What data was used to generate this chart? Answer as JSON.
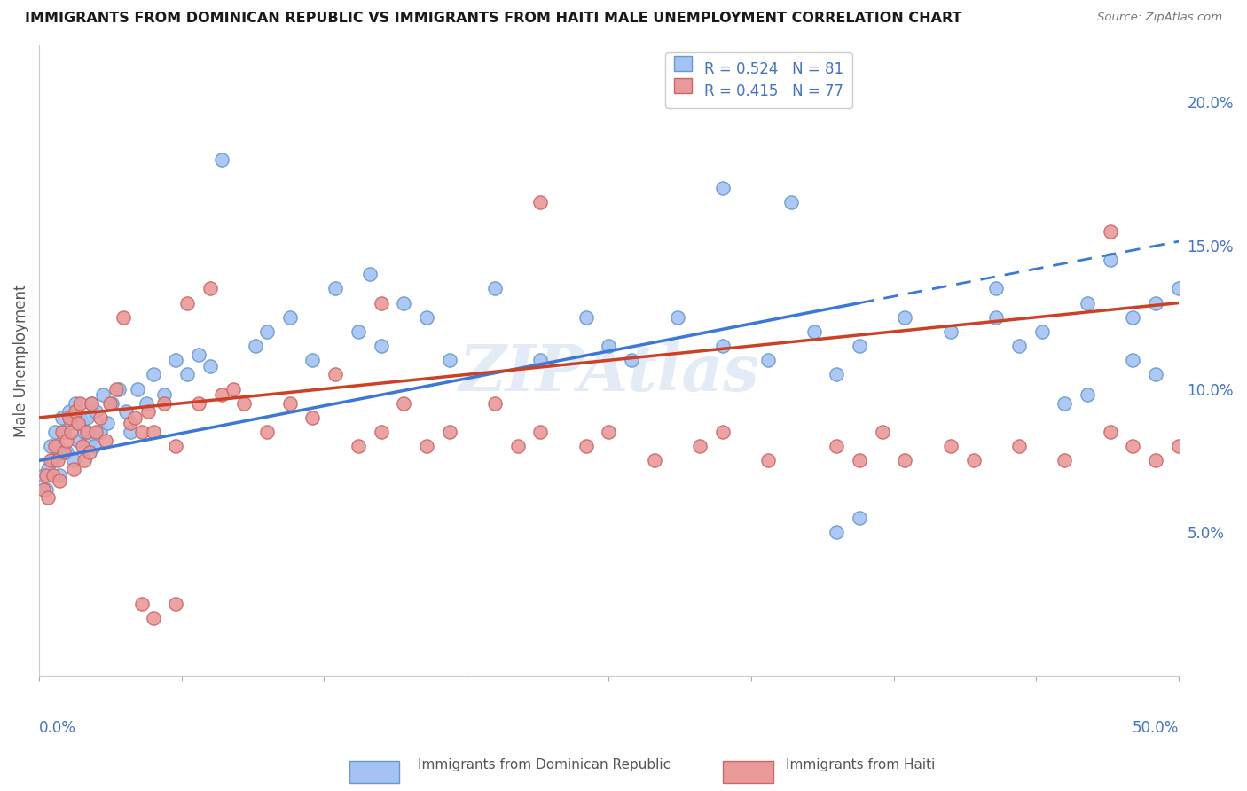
{
  "title": "IMMIGRANTS FROM DOMINICAN REPUBLIC VS IMMIGRANTS FROM HAITI MALE UNEMPLOYMENT CORRELATION CHART",
  "source": "Source: ZipAtlas.com",
  "ylabel": "Male Unemployment",
  "legend_blue_r": "R = 0.524",
  "legend_blue_n": "N = 81",
  "legend_pink_r": "R = 0.415",
  "legend_pink_n": "N = 77",
  "blue_color": "#a4c2f4",
  "pink_color": "#ea9999",
  "blue_line_color": "#3c78d8",
  "pink_line_color": "#cc4125",
  "watermark": "ZIPAtlas",
  "xlim_pct": [
    0.0,
    50.0
  ],
  "ylim_pct": [
    0.0,
    22.0
  ],
  "ytick_pct": [
    5.0,
    10.0,
    15.0,
    20.0
  ],
  "blue_line_x0": 0.0,
  "blue_line_y0": 7.5,
  "blue_line_x1": 36.0,
  "blue_line_y1": 13.0,
  "blue_dash_x0": 36.0,
  "blue_dash_y0": 13.0,
  "blue_dash_x1": 51.0,
  "blue_dash_y1": 15.3,
  "pink_line_x0": 0.0,
  "pink_line_y0": 9.0,
  "pink_line_x1": 50.0,
  "pink_line_y1": 13.0,
  "blue_x": [
    0.2,
    0.3,
    0.4,
    0.5,
    0.6,
    0.7,
    0.8,
    0.9,
    1.0,
    1.1,
    1.2,
    1.3,
    1.4,
    1.5,
    1.6,
    1.7,
    1.8,
    1.9,
    2.0,
    2.1,
    2.2,
    2.3,
    2.4,
    2.5,
    2.7,
    2.8,
    3.0,
    3.2,
    3.5,
    3.8,
    4.0,
    4.3,
    4.7,
    5.0,
    5.5,
    6.0,
    6.5,
    7.0,
    7.5,
    8.0,
    9.5,
    10.0,
    11.0,
    12.0,
    13.0,
    14.0,
    14.5,
    15.0,
    16.0,
    17.0,
    18.0,
    20.0,
    22.0,
    24.0,
    25.0,
    26.0,
    28.0,
    30.0,
    32.0,
    34.0,
    35.0,
    36.0,
    38.0,
    40.0,
    42.0,
    43.0,
    44.0,
    46.0,
    47.0,
    48.0,
    49.0,
    30.0,
    33.0,
    35.0,
    36.0,
    42.0,
    45.0,
    46.0,
    48.0,
    49.0,
    50.0
  ],
  "blue_y": [
    7.0,
    6.5,
    7.2,
    8.0,
    7.5,
    8.5,
    8.0,
    7.0,
    9.0,
    8.5,
    7.8,
    9.2,
    8.8,
    7.5,
    9.5,
    8.2,
    9.0,
    8.8,
    8.5,
    9.0,
    8.2,
    9.5,
    8.0,
    9.2,
    8.5,
    9.8,
    8.8,
    9.5,
    10.0,
    9.2,
    8.5,
    10.0,
    9.5,
    10.5,
    9.8,
    11.0,
    10.5,
    11.2,
    10.8,
    18.0,
    11.5,
    12.0,
    12.5,
    11.0,
    13.5,
    12.0,
    14.0,
    11.5,
    13.0,
    12.5,
    11.0,
    13.5,
    11.0,
    12.5,
    11.5,
    11.0,
    12.5,
    11.5,
    11.0,
    12.0,
    10.5,
    11.5,
    12.5,
    12.0,
    13.5,
    11.5,
    12.0,
    13.0,
    14.5,
    12.5,
    13.0,
    17.0,
    16.5,
    5.0,
    5.5,
    12.5,
    9.5,
    9.8,
    11.0,
    10.5,
    13.5
  ],
  "pink_x": [
    0.2,
    0.3,
    0.4,
    0.5,
    0.6,
    0.7,
    0.8,
    0.9,
    1.0,
    1.1,
    1.2,
    1.3,
    1.4,
    1.5,
    1.6,
    1.7,
    1.8,
    1.9,
    2.0,
    2.1,
    2.2,
    2.3,
    2.5,
    2.7,
    2.9,
    3.1,
    3.4,
    3.7,
    4.0,
    4.2,
    4.5,
    4.8,
    5.0,
    5.5,
    6.0,
    6.5,
    7.0,
    7.5,
    8.0,
    8.5,
    9.0,
    10.0,
    11.0,
    12.0,
    13.0,
    14.0,
    15.0,
    16.0,
    17.0,
    18.0,
    20.0,
    21.0,
    22.0,
    24.0,
    25.0,
    27.0,
    29.0,
    30.0,
    32.0,
    35.0,
    36.0,
    37.0,
    38.0,
    40.0,
    41.0,
    43.0,
    45.0,
    47.0,
    48.0,
    49.0,
    50.0,
    22.0,
    47.0,
    15.0,
    6.0,
    4.5,
    5.0
  ],
  "pink_y": [
    6.5,
    7.0,
    6.2,
    7.5,
    7.0,
    8.0,
    7.5,
    6.8,
    8.5,
    7.8,
    8.2,
    9.0,
    8.5,
    7.2,
    9.2,
    8.8,
    9.5,
    8.0,
    7.5,
    8.5,
    7.8,
    9.5,
    8.5,
    9.0,
    8.2,
    9.5,
    10.0,
    12.5,
    8.8,
    9.0,
    8.5,
    9.2,
    8.5,
    9.5,
    8.0,
    13.0,
    9.5,
    13.5,
    9.8,
    10.0,
    9.5,
    8.5,
    9.5,
    9.0,
    10.5,
    8.0,
    8.5,
    9.5,
    8.0,
    8.5,
    9.5,
    8.0,
    8.5,
    8.0,
    8.5,
    7.5,
    8.0,
    8.5,
    7.5,
    8.0,
    7.5,
    8.5,
    7.5,
    8.0,
    7.5,
    8.0,
    7.5,
    8.5,
    8.0,
    7.5,
    8.0,
    16.5,
    15.5,
    13.0,
    2.5,
    2.5,
    2.0
  ]
}
